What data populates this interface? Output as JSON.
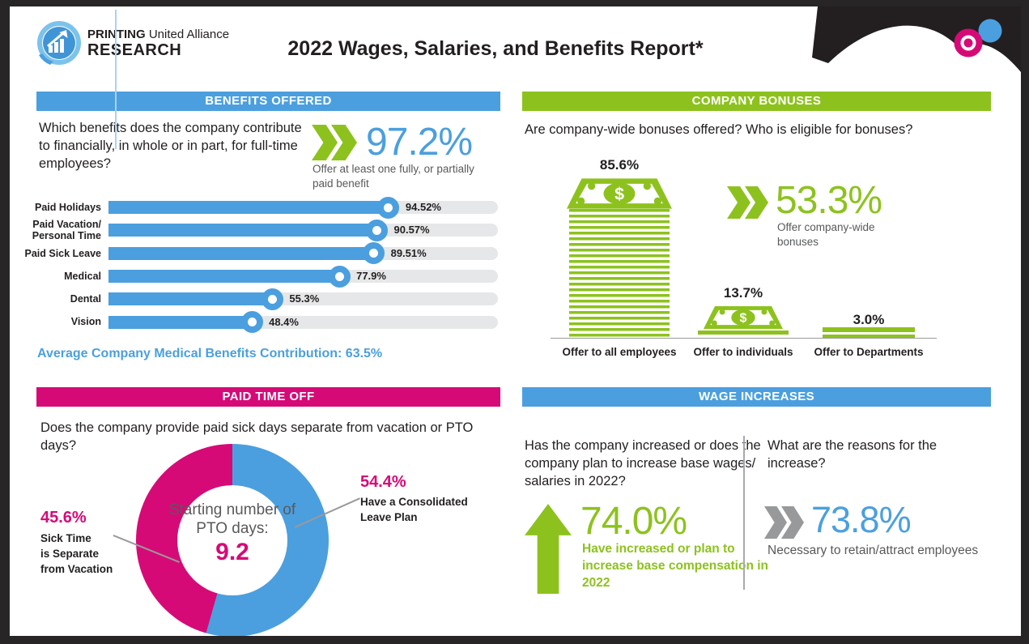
{
  "header": {
    "logo_brand_bold": "PRINTING",
    "logo_brand_regular": " United Alliance",
    "logo_research": "RESEARCH",
    "title": "2022 Wages, Salaries, and Benefits Report*"
  },
  "colors": {
    "blue": "#4b9fdf",
    "green": "#8dc21e",
    "magenta": "#d60a77",
    "dark_text": "#231f20",
    "gray_text": "#58595b",
    "track_gray": "#e6e7e8",
    "gray_chevron": "#97999b"
  },
  "benefits": {
    "header": "BENEFITS OFFERED",
    "question": "Which benefits does the company contribute to financially, in whole or in part, for full-time employees?",
    "stat_value": "97.2%",
    "stat_caption": "Offer at least one fully, or partially paid benefit",
    "avg_note": "Average Company Medical Benefits Contribution: 63.5%"
  },
  "bonuses": {
    "header": "COMPANY BONUSES",
    "question": "Are company-wide bonuses offered? Who is eligible for bonuses?",
    "stat_value": "53.3%",
    "stat_caption": "Offer company-wide bonuses"
  },
  "pto": {
    "header": "PAID TIME OFF",
    "question": "Does the company provide paid sick days separate from vacation or PTO days?",
    "center_label": "Starting number of PTO days:",
    "center_value": "9.2",
    "left_value": "45.6%",
    "left_label": "Sick Time\nis Separate\nfrom Vacation",
    "right_value": "54.4%",
    "right_label": "Have a Consolidated\nLeave Plan"
  },
  "wages": {
    "header": "WAGE INCREASES",
    "question_left": "Has the company increased or does the company plan to increase base wages/ salaries in 2022?",
    "stat_left_value": "74.0%",
    "stat_left_caption": "Have increased or plan to increase base compensation in 2022",
    "question_right": "What are the reasons for the increase?",
    "stat_right_value": "73.8%",
    "stat_right_caption": "Necessary to retain/attract employees"
  },
  "chart_data": [
    {
      "type": "bar",
      "id": "benefits-bars",
      "orientation": "horizontal",
      "title": "BENEFITS OFFERED",
      "unit": "%",
      "xlim": [
        0,
        100
      ],
      "categories": [
        "Paid Holidays",
        "Paid Vacation/\nPersonal Time",
        "Paid Sick Leave",
        "Medical",
        "Dental",
        "Vision"
      ],
      "values": [
        94.52,
        90.57,
        89.51,
        77.9,
        55.3,
        48.4
      ],
      "value_labels": [
        "94.52%",
        "90.57%",
        "89.51%",
        "77.9%",
        "55.3%",
        "48.4%"
      ],
      "annotations": [
        "97.2% Offer at least one fully, or partially paid benefit",
        "Average Company Medical Benefits Contribution: 63.5%"
      ]
    },
    {
      "type": "bar",
      "id": "bonus-stacks",
      "orientation": "vertical",
      "title": "COMPANY BONUSES",
      "unit": "%",
      "categories": [
        "Offer to all employees",
        "Offer to individuals",
        "Offer to Departments"
      ],
      "values": [
        85.6,
        13.7,
        3.0
      ],
      "value_labels": [
        "85.6%",
        "13.7%",
        "3.0%"
      ],
      "annotations": [
        "53.3% Offer company-wide bonuses"
      ]
    },
    {
      "type": "pie",
      "id": "pto-donut",
      "title": "PAID TIME OFF",
      "labels": [
        "Have a Consolidated Leave Plan",
        "Sick Time is Separate from Vacation"
      ],
      "values": [
        54.4,
        45.6
      ],
      "colors": [
        "#4b9fdf",
        "#d60a77"
      ],
      "start_angle_deg": 0,
      "center_label": "Starting number of PTO days: 9.2"
    },
    {
      "type": "stat",
      "id": "wage-stats",
      "title": "WAGE INCREASES",
      "items": [
        {
          "value": 74.0,
          "label": "Have increased or plan to increase base compensation in 2022"
        },
        {
          "value": 73.8,
          "label": "Necessary to retain/attract employees"
        }
      ]
    }
  ]
}
